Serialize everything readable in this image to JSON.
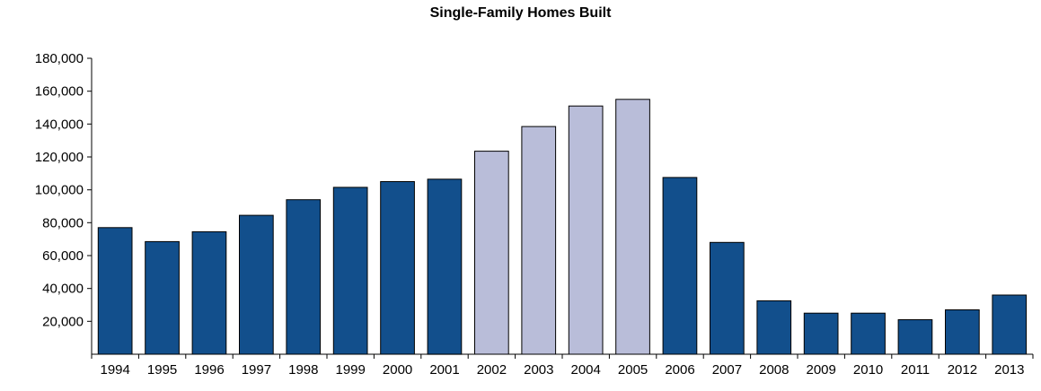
{
  "chart_data": {
    "type": "bar",
    "title": "Single-Family Homes Built",
    "xlabel": "",
    "ylabel": "",
    "categories": [
      "1994",
      "1995",
      "1996",
      "1997",
      "1998",
      "1999",
      "2000",
      "2001",
      "2002",
      "2003",
      "2004",
      "2005",
      "2006",
      "2007",
      "2008",
      "2009",
      "2010",
      "2011",
      "2012",
      "2013"
    ],
    "values": [
      77000,
      68500,
      74500,
      84500,
      94000,
      101500,
      105000,
      106500,
      123500,
      138500,
      151000,
      155000,
      107500,
      68000,
      32500,
      25000,
      25000,
      21000,
      27000,
      36000
    ],
    "highlighted_categories": [
      "2002",
      "2003",
      "2004",
      "2005"
    ],
    "ylim": [
      0,
      180000
    ],
    "y_ticks": [
      20000,
      40000,
      60000,
      80000,
      100000,
      120000,
      140000,
      160000,
      180000
    ],
    "y_tick_labels": [
      "20,000",
      "40,000",
      "60,000",
      "80,000",
      "100,000",
      "120,000",
      "140,000",
      "160,000",
      "180,000"
    ],
    "grid": false,
    "legend": "none",
    "colors": {
      "bar": "#124f8c",
      "highlight": "#b9bdd9",
      "bar_edge": "#000000",
      "axis": "#000000"
    }
  }
}
